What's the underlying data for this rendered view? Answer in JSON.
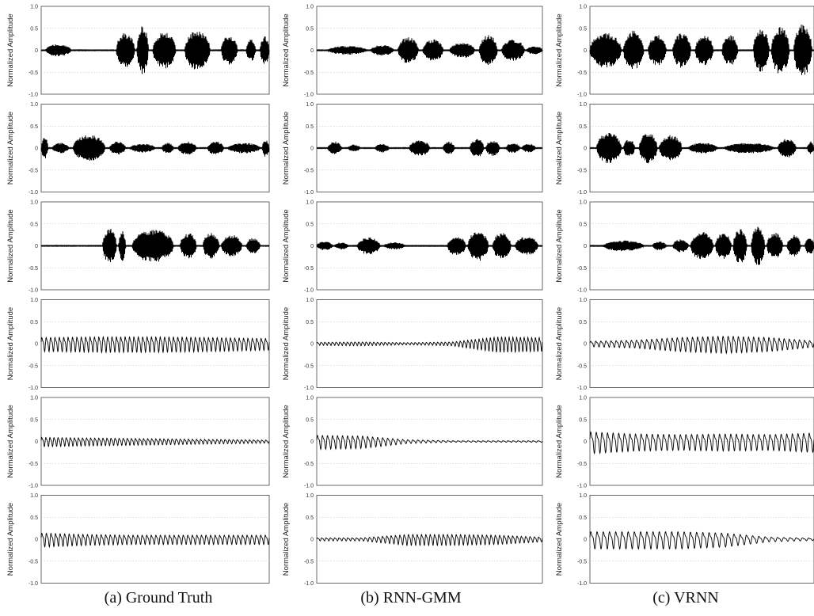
{
  "figure": {
    "y_tick_labels": [
      "1.0",
      "0.5",
      "0",
      "-0.5",
      "-1.0"
    ],
    "y_axis_label": "Normalized Amplitude",
    "captions": [
      "(a) Ground Truth",
      "(b) RNN-GMM",
      "(c) VRNN"
    ]
  },
  "chart_data": {
    "type": "line",
    "layout": "grid of 6 rows x 3 columns of waveform panels",
    "columns": [
      "(a) Ground Truth",
      "(b) RNN-GMM",
      "(c) VRNN"
    ],
    "ylabel": "Normalized Amplitude",
    "ylim": [
      -1.0,
      1.0
    ],
    "yticks": [
      1.0,
      0.5,
      0,
      -0.5,
      -1.0
    ],
    "grid": "horizontal dotted lines at 0.5, 0 and -0.5",
    "xlabel": "",
    "panels": [
      {
        "row": 0,
        "column": "(a) Ground Truth",
        "kind": "speech",
        "bursts": [
          [
            0.02,
            0.13,
            0.14
          ],
          [
            0.33,
            0.41,
            0.4
          ],
          [
            0.42,
            0.47,
            0.55
          ],
          [
            0.49,
            0.59,
            0.42
          ],
          [
            0.63,
            0.74,
            0.45
          ],
          [
            0.79,
            0.86,
            0.34
          ],
          [
            0.9,
            0.94,
            0.25
          ],
          [
            0.96,
            1.0,
            0.32
          ]
        ]
      },
      {
        "row": 0,
        "column": "(b) RNN-GMM",
        "kind": "speech",
        "bursts": [
          [
            0.05,
            0.22,
            0.1
          ],
          [
            0.24,
            0.34,
            0.12
          ],
          [
            0.36,
            0.45,
            0.3
          ],
          [
            0.47,
            0.56,
            0.25
          ],
          [
            0.59,
            0.7,
            0.18
          ],
          [
            0.72,
            0.8,
            0.35
          ],
          [
            0.82,
            0.92,
            0.25
          ],
          [
            0.93,
            1.0,
            0.1
          ]
        ]
      },
      {
        "row": 0,
        "column": "(c) VRNN",
        "kind": "speech",
        "bursts": [
          [
            0.0,
            0.14,
            0.4
          ],
          [
            0.15,
            0.24,
            0.45
          ],
          [
            0.26,
            0.34,
            0.35
          ],
          [
            0.37,
            0.45,
            0.4
          ],
          [
            0.47,
            0.55,
            0.35
          ],
          [
            0.59,
            0.66,
            0.35
          ],
          [
            0.73,
            0.8,
            0.5
          ],
          [
            0.81,
            0.89,
            0.55
          ],
          [
            0.91,
            0.99,
            0.6
          ]
        ]
      },
      {
        "row": 1,
        "column": "(a) Ground Truth",
        "kind": "speech",
        "bursts": [
          [
            0.0,
            0.03,
            0.25
          ],
          [
            0.05,
            0.12,
            0.12
          ],
          [
            0.14,
            0.28,
            0.3
          ],
          [
            0.3,
            0.37,
            0.15
          ],
          [
            0.39,
            0.5,
            0.1
          ],
          [
            0.53,
            0.58,
            0.12
          ],
          [
            0.6,
            0.68,
            0.15
          ],
          [
            0.73,
            0.8,
            0.15
          ],
          [
            0.82,
            0.96,
            0.12
          ],
          [
            0.97,
            1.0,
            0.2
          ]
        ]
      },
      {
        "row": 1,
        "column": "(b) RNN-GMM",
        "kind": "speech",
        "bursts": [
          [
            0.05,
            0.11,
            0.15
          ],
          [
            0.14,
            0.19,
            0.08
          ],
          [
            0.26,
            0.32,
            0.1
          ],
          [
            0.41,
            0.5,
            0.18
          ],
          [
            0.56,
            0.61,
            0.15
          ],
          [
            0.68,
            0.74,
            0.22
          ],
          [
            0.75,
            0.81,
            0.18
          ],
          [
            0.84,
            0.9,
            0.12
          ],
          [
            0.91,
            0.97,
            0.1
          ]
        ]
      },
      {
        "row": 1,
        "column": "(c) VRNN",
        "kind": "speech",
        "bursts": [
          [
            0.03,
            0.14,
            0.35
          ],
          [
            0.15,
            0.2,
            0.2
          ],
          [
            0.22,
            0.3,
            0.35
          ],
          [
            0.31,
            0.41,
            0.3
          ],
          [
            0.44,
            0.57,
            0.12
          ],
          [
            0.6,
            0.82,
            0.12
          ],
          [
            0.84,
            0.92,
            0.22
          ],
          [
            0.97,
            1.0,
            0.15
          ]
        ]
      },
      {
        "row": 2,
        "column": "(a) Ground Truth",
        "kind": "speech",
        "bursts": [
          [
            0.27,
            0.33,
            0.4
          ],
          [
            0.34,
            0.37,
            0.35
          ],
          [
            0.4,
            0.58,
            0.38
          ],
          [
            0.61,
            0.68,
            0.3
          ],
          [
            0.71,
            0.78,
            0.3
          ],
          [
            0.79,
            0.88,
            0.25
          ],
          [
            0.9,
            0.96,
            0.18
          ]
        ]
      },
      {
        "row": 2,
        "column": "(b) RNN-GMM",
        "kind": "speech",
        "bursts": [
          [
            0.0,
            0.07,
            0.1
          ],
          [
            0.08,
            0.14,
            0.08
          ],
          [
            0.18,
            0.28,
            0.2
          ],
          [
            0.3,
            0.39,
            0.08
          ],
          [
            0.58,
            0.66,
            0.22
          ],
          [
            0.67,
            0.76,
            0.35
          ],
          [
            0.78,
            0.86,
            0.3
          ],
          [
            0.88,
            0.98,
            0.22
          ]
        ]
      },
      {
        "row": 2,
        "column": "(c) VRNN",
        "kind": "speech",
        "bursts": [
          [
            0.06,
            0.24,
            0.12
          ],
          [
            0.28,
            0.34,
            0.1
          ],
          [
            0.37,
            0.44,
            0.15
          ],
          [
            0.45,
            0.55,
            0.32
          ],
          [
            0.56,
            0.63,
            0.3
          ],
          [
            0.64,
            0.7,
            0.4
          ],
          [
            0.72,
            0.78,
            0.45
          ],
          [
            0.79,
            0.86,
            0.3
          ],
          [
            0.88,
            0.94,
            0.25
          ],
          [
            0.96,
            1.0,
            0.2
          ]
        ]
      },
      {
        "row": 3,
        "column": "(a) Ground Truth",
        "kind": "oscillation",
        "cycles": 52,
        "amplitude_envelope": [
          0.18,
          0.2,
          0.2,
          0.18,
          0.15
        ]
      },
      {
        "row": 3,
        "column": "(b) RNN-GMM",
        "kind": "oscillation",
        "cycles": 60,
        "amplitude_envelope": [
          0.04,
          0.05,
          0.03,
          0.05,
          0.2,
          0.18
        ]
      },
      {
        "row": 3,
        "column": "(c) VRNN",
        "kind": "oscillation",
        "cycles": 44,
        "amplitude_envelope": [
          0.07,
          0.1,
          0.18,
          0.22,
          0.18,
          0.08
        ]
      },
      {
        "row": 4,
        "column": "(a) Ground Truth",
        "kind": "oscillation",
        "cycles": 56,
        "amplitude_envelope": [
          0.12,
          0.1,
          0.08,
          0.06,
          0.04
        ]
      },
      {
        "row": 4,
        "column": "(b) RNN-GMM",
        "kind": "oscillation",
        "cycles": 45,
        "amplitude_envelope": [
          0.18,
          0.16,
          0.05,
          0.02,
          0.02,
          0.02
        ]
      },
      {
        "row": 4,
        "column": "(c) VRNN",
        "kind": "oscillation",
        "cycles": 40,
        "amplitude_envelope": [
          0.28,
          0.22,
          0.2,
          0.22,
          0.2,
          0.25
        ]
      },
      {
        "row": 5,
        "column": "(a) Ground Truth",
        "kind": "oscillation",
        "cycles": 50,
        "amplitude_envelope": [
          0.18,
          0.14,
          0.12,
          0.12,
          0.12,
          0.12
        ]
      },
      {
        "row": 5,
        "column": "(b) RNN-GMM",
        "kind": "oscillation",
        "cycles": 52,
        "amplitude_envelope": [
          0.04,
          0.04,
          0.14,
          0.14,
          0.12,
          0.06
        ]
      },
      {
        "row": 5,
        "column": "(c) VRNN",
        "kind": "oscillation",
        "cycles": 36,
        "amplitude_envelope": [
          0.22,
          0.22,
          0.22,
          0.18,
          0.06,
          0.03
        ]
      }
    ]
  }
}
